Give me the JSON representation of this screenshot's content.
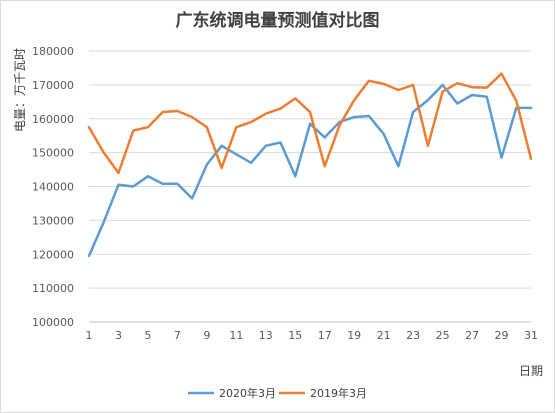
{
  "chart_data": {
    "type": "line",
    "title": "广东统调电量预测值对比图",
    "xlabel": "日期",
    "ylabel": "电量：万千瓦时",
    "ylim": [
      100000,
      180000
    ],
    "yticks": [
      100000,
      110000,
      120000,
      130000,
      140000,
      150000,
      160000,
      170000,
      180000
    ],
    "xlim": [
      1,
      31
    ],
    "xticks": [
      1,
      3,
      5,
      7,
      9,
      11,
      13,
      15,
      17,
      19,
      21,
      23,
      25,
      27,
      29,
      31
    ],
    "grid": true,
    "legend_position": "bottom",
    "x": [
      1,
      2,
      3,
      4,
      5,
      6,
      7,
      8,
      9,
      10,
      11,
      12,
      13,
      14,
      15,
      16,
      17,
      18,
      19,
      20,
      21,
      22,
      23,
      24,
      25,
      26,
      27,
      28,
      29,
      30,
      31
    ],
    "series": [
      {
        "name": "2020年3月",
        "color": "#5b9bd5",
        "values": [
          119500,
          129500,
          140500,
          140000,
          143000,
          140800,
          140800,
          136500,
          146500,
          152000,
          149500,
          147000,
          152000,
          153000,
          143000,
          158500,
          154500,
          159000,
          160500,
          160800,
          155500,
          146000,
          162000,
          165500,
          170000,
          164500,
          167000,
          166500,
          148500,
          163200,
          163200
        ]
      },
      {
        "name": "2019年3月",
        "color": "#ed7d31",
        "values": [
          157500,
          150000,
          144000,
          156500,
          157500,
          162000,
          162300,
          160500,
          157500,
          145500,
          157500,
          159000,
          161500,
          163000,
          166000,
          162000,
          146000,
          158000,
          165500,
          171200,
          170300,
          168500,
          170000,
          152000,
          168000,
          170500,
          169300,
          169200,
          173300,
          165300,
          148200
        ]
      }
    ]
  }
}
